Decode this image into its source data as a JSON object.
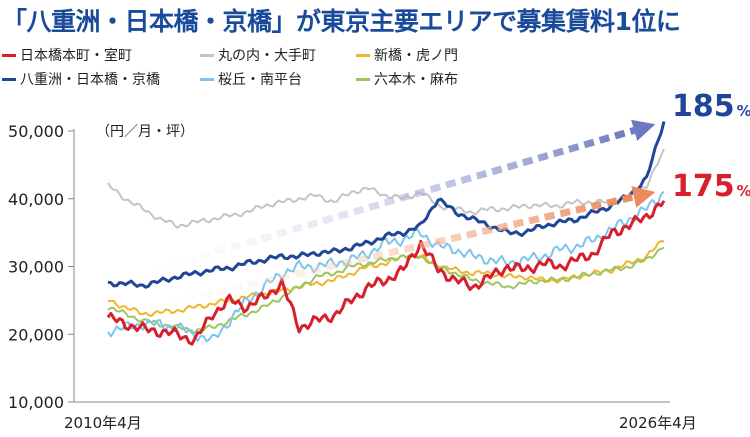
{
  "title": "「八重洲・日本橋・京橋」が東京主要エリアで募集賃料1位に",
  "unit_label": "（円／月・坪）",
  "chart_data": {
    "type": "line",
    "title": "「八重洲・日本橋・京橋」が東京主要エリアで募集賃料1位に",
    "xlabel": "",
    "ylabel": "（円／月・坪）",
    "x_start_label": "2010年4月",
    "x_end_label": "2026年4月",
    "ylim": [
      10000,
      50000
    ],
    "yticks": [
      10000,
      20000,
      30000,
      40000,
      50000
    ],
    "ytick_labels": [
      "10,000",
      "20,000",
      "30,000",
      "40,000",
      "50,000"
    ],
    "grid": false,
    "legend_position": "top",
    "x_months": [
      0,
      6,
      12,
      18,
      24,
      30,
      36,
      42,
      48,
      54,
      60,
      66,
      72,
      78,
      84,
      90,
      96,
      102,
      108,
      114,
      120,
      126,
      132,
      138,
      144,
      150,
      156,
      162,
      168,
      174,
      180,
      186,
      192
    ],
    "series": [
      {
        "name": "日本橋本町・室町",
        "color": "#d7202c",
        "width": 3,
        "values": [
          22500,
          21500,
          20800,
          20400,
          20000,
          19000,
          23000,
          25000,
          24000,
          25500,
          27500,
          21000,
          22000,
          22800,
          25000,
          27000,
          28000,
          29500,
          33500,
          29500,
          28000,
          27000,
          28500,
          30000,
          29500,
          30500,
          30000,
          31000,
          32000,
          35000,
          36000,
          37500,
          39500
        ]
      },
      {
        "name": "丸の内・大手町",
        "color": "#c4c4c4",
        "width": 2,
        "values": [
          42000,
          40000,
          38500,
          37000,
          36000,
          36500,
          37000,
          37500,
          38000,
          39000,
          39500,
          40000,
          40500,
          39500,
          41000,
          41500,
          40500,
          40000,
          41000,
          39000,
          38500,
          38000,
          38500,
          38500,
          39000,
          39000,
          39000,
          39500,
          39500,
          39500,
          40500,
          42000,
          47000
        ]
      },
      {
        "name": "新橋・虎ノ門",
        "color": "#f0b52c",
        "width": 2,
        "values": [
          25000,
          24000,
          23000,
          23200,
          23500,
          24000,
          24500,
          25000,
          25500,
          26000,
          26500,
          27000,
          27500,
          28000,
          29000,
          30000,
          30500,
          31500,
          31500,
          30000,
          29500,
          29000,
          29000,
          28500,
          28500,
          28000,
          28000,
          28500,
          29000,
          29500,
          30500,
          31500,
          34000
        ]
      },
      {
        "name": "八重洲・日本橋・京橋",
        "color": "#1f4698",
        "width": 3,
        "values": [
          27500,
          27500,
          27200,
          27800,
          28500,
          29000,
          29500,
          29800,
          30500,
          31000,
          31500,
          31500,
          32000,
          32200,
          32800,
          33500,
          34500,
          35000,
          36000,
          40000,
          38000,
          37000,
          36000,
          35000,
          35000,
          36000,
          36500,
          37000,
          38000,
          39000,
          40500,
          43000,
          51500
        ]
      },
      {
        "name": "桜丘・南平台",
        "color": "#7cc4ee",
        "width": 2,
        "values": [
          20500,
          21000,
          21500,
          21500,
          21000,
          20000,
          19000,
          22000,
          25000,
          27000,
          29000,
          30000,
          30000,
          30500,
          31000,
          32000,
          33500,
          34000,
          35000,
          33000,
          32500,
          31500,
          31000,
          30500,
          31000,
          31500,
          32500,
          33000,
          34000,
          35500,
          37000,
          38500,
          41000
        ]
      },
      {
        "name": "六本木・麻布",
        "color": "#9cc65e",
        "width": 2,
        "values": [
          24000,
          23000,
          22000,
          21500,
          21000,
          20500,
          21000,
          22000,
          23000,
          24000,
          25500,
          27000,
          28500,
          29000,
          30000,
          30500,
          31000,
          31500,
          31500,
          30000,
          29000,
          28000,
          27500,
          27000,
          27500,
          28000,
          28000,
          28500,
          29000,
          29500,
          30000,
          31000,
          33000
        ]
      }
    ],
    "trend_arrows": [
      {
        "label": "185",
        "suffix": "%",
        "color": "#1f4698",
        "arrow_color": "#6c78bf",
        "from_month": 0,
        "from_value": 27500,
        "to_month": 189,
        "to_value": 51000
      },
      {
        "label": "175",
        "suffix": "%",
        "color": "#d7202c",
        "arrow_color": "#ec8a5d",
        "from_month": 0,
        "from_value": 22500,
        "to_month": 189,
        "to_value": 41000
      }
    ]
  }
}
